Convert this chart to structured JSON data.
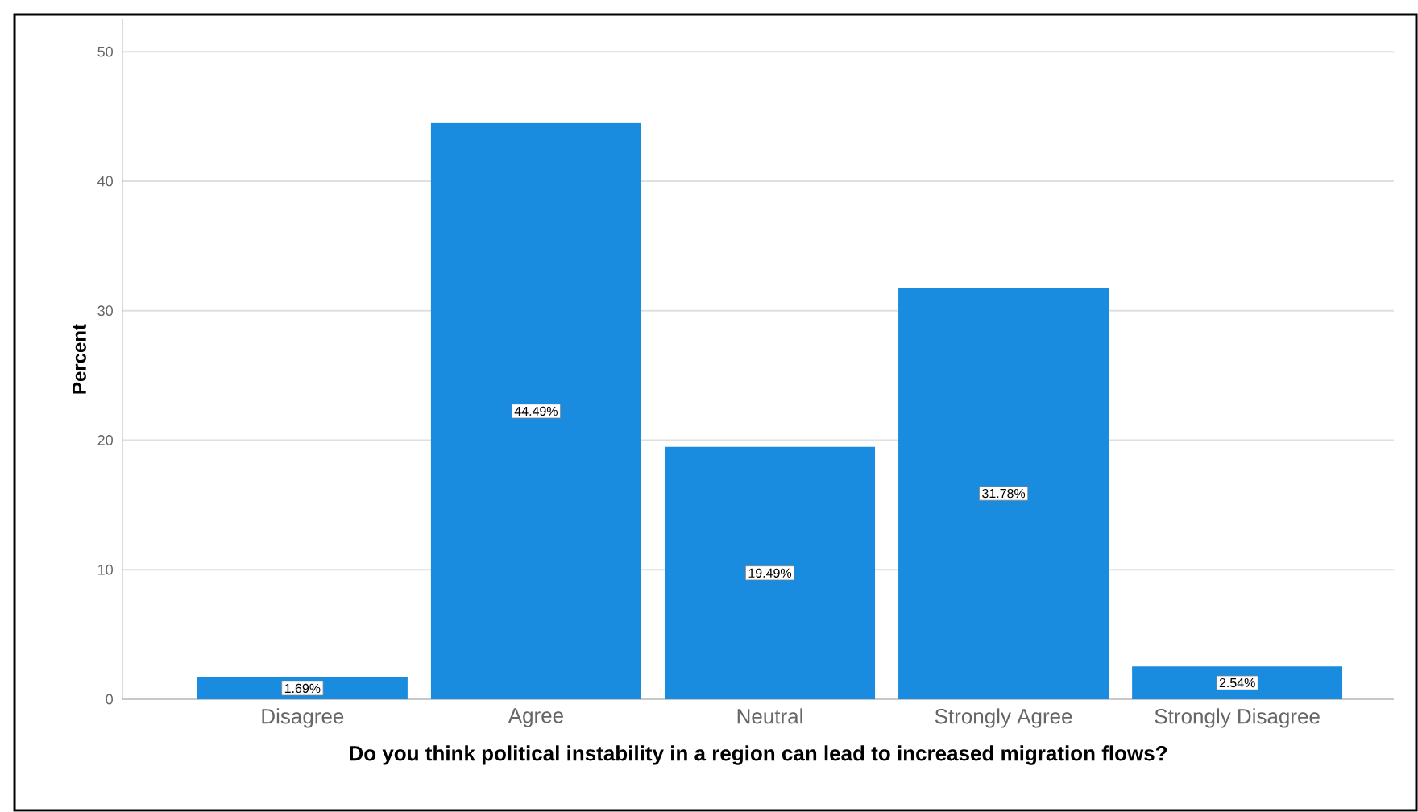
{
  "chart_data": {
    "type": "bar",
    "xlabel": "Do you think political instability in a region can lead to increased migration flows?",
    "ylabel": "Percent",
    "categories": [
      "Disagree",
      "Agree",
      "Neutral",
      "Strongly Agree",
      "Strongly Disagree"
    ],
    "values": [
      1.69,
      44.49,
      19.49,
      31.78,
      2.54
    ],
    "value_labels": [
      "1.69%",
      "44.49%",
      "19.49%",
      "31.78%",
      "2.54%"
    ],
    "color": "#1a8ce0",
    "ylim": [
      0,
      52.5
    ],
    "yticks": [
      0,
      10,
      20,
      30,
      40,
      50
    ],
    "grid": "y"
  }
}
